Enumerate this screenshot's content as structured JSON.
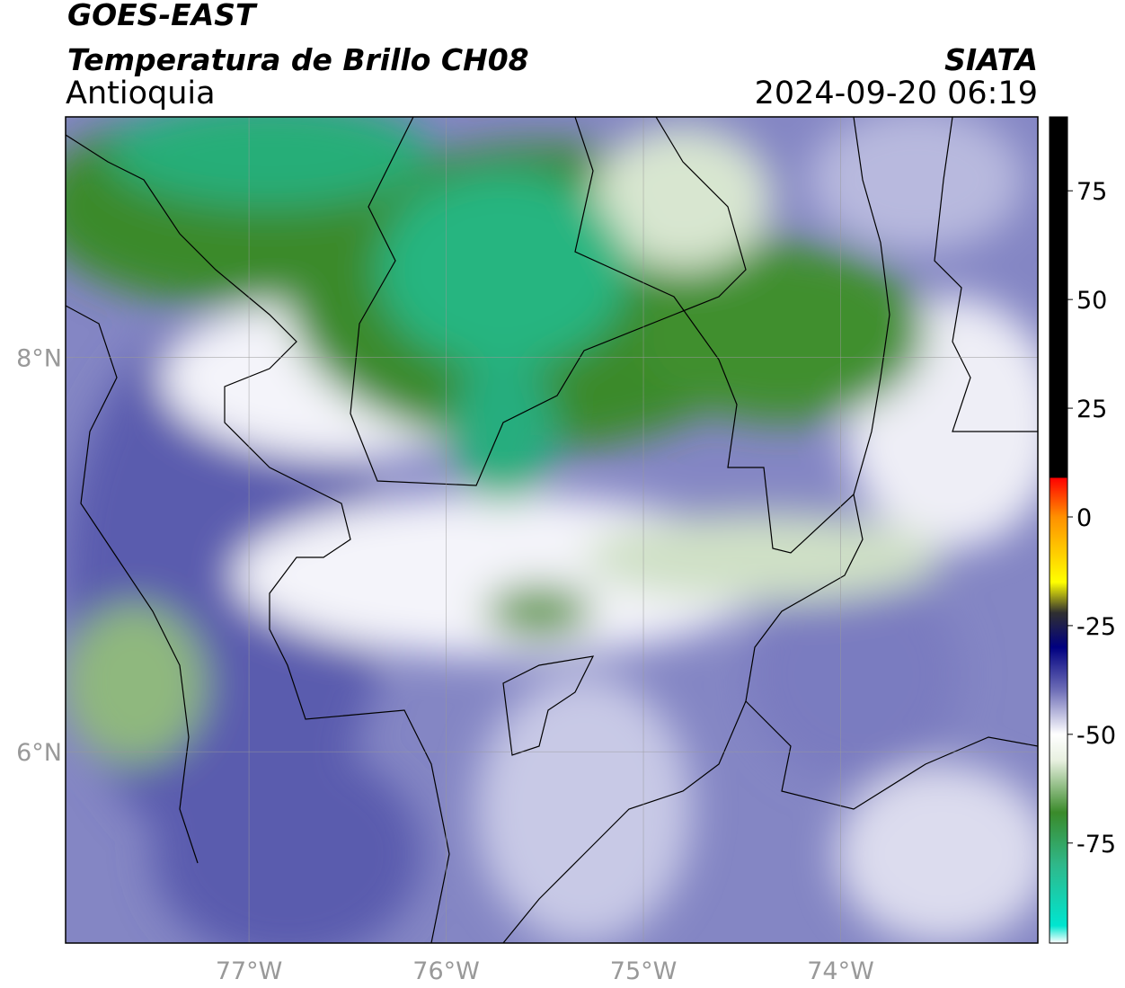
{
  "map": {
    "title": "GOES-EAST",
    "subtitle": "Temperatura de Brillo CH08",
    "region": "Antioquia",
    "source": "SIATA",
    "datetime": "2024-09-20 06:19",
    "xlim": [
      -77.93,
      -73.0
    ],
    "ylim": [
      5.03,
      9.22
    ],
    "xticks": [
      {
        "value": -77,
        "label": "77°W"
      },
      {
        "value": -76,
        "label": "76°W"
      },
      {
        "value": -75,
        "label": "75°W"
      },
      {
        "value": -74,
        "label": "74°W"
      }
    ],
    "yticks": [
      {
        "value": 6,
        "label": "6°N"
      },
      {
        "value": 8,
        "label": "8°N"
      }
    ],
    "grid": true,
    "colorbar": {
      "lim": [
        -98,
        92
      ],
      "ticks": [
        75,
        50,
        25,
        0,
        -25,
        -50,
        -75
      ],
      "stops": [
        {
          "value": -98,
          "color": "#ffffff"
        },
        {
          "value": -94,
          "color": "#00e5d0"
        },
        {
          "value": -80,
          "color": "#2fb88a"
        },
        {
          "value": -68,
          "color": "#3a8a2a"
        },
        {
          "value": -56,
          "color": "#e8f0e0"
        },
        {
          "value": -50,
          "color": "#ffffff"
        },
        {
          "value": -40,
          "color": "#7070b8"
        },
        {
          "value": -30,
          "color": "#000080"
        },
        {
          "value": -22,
          "color": "#303030"
        },
        {
          "value": -15,
          "color": "#ffff00"
        },
        {
          "value": 0,
          "color": "#ff9000"
        },
        {
          "value": 9,
          "color": "#ff0000"
        },
        {
          "value": 9.01,
          "color": "#000000"
        },
        {
          "value": 92,
          "color": "#000000"
        }
      ]
    }
  }
}
